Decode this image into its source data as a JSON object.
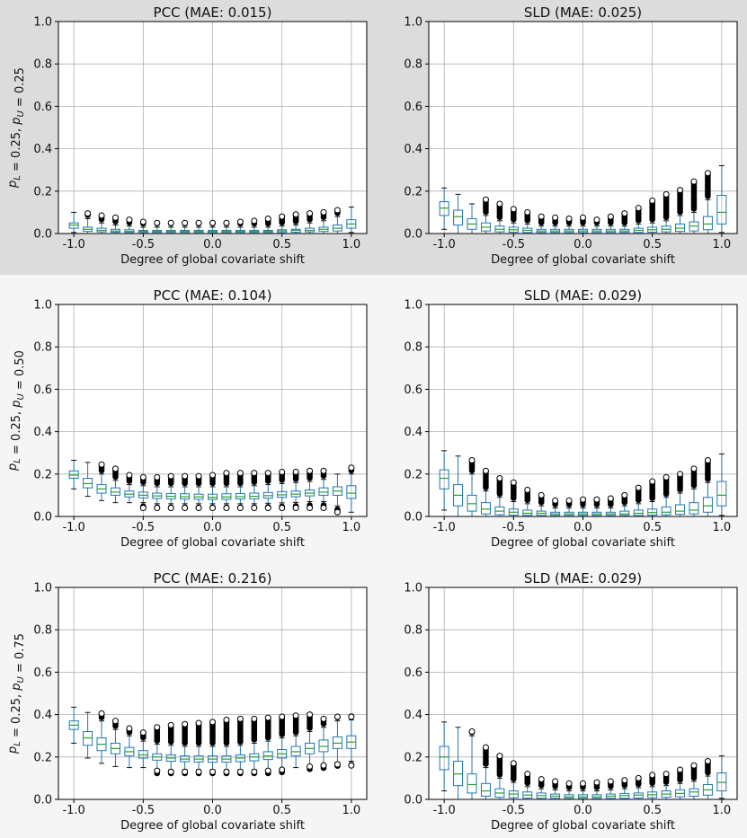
{
  "figure": {
    "xlabel": "Degree of global covariate shift",
    "x_tick_labels": [
      "-1.0",
      "-0.5",
      "0.0",
      "0.5",
      "1.0"
    ],
    "y_tick_labels": [
      "0.0",
      "0.2",
      "0.4",
      "0.6",
      "0.8",
      "1.0"
    ],
    "rows": [
      {
        "row_label": "p_L = 0.25, p_U = 0.25"
      },
      {
        "row_label": "p_L = 0.25, p_U = 0.50"
      },
      {
        "row_label": "p_L = 0.25, p_U = 0.75"
      }
    ],
    "colors": {
      "box": "#1f77b4",
      "median": "#2ca02c",
      "grid": "#b0b0b0",
      "outlier": "#000000",
      "band_top": "#dcdcdc",
      "band_rest": "#f5f5f5"
    }
  },
  "chart_data": [
    {
      "type": "box",
      "title": "PCC (MAE: 0.015)",
      "xlabel": "Degree of global covariate shift",
      "ylabel": "p_L = 0.25, p_U = 0.25",
      "xlim": [
        -1.0,
        1.0
      ],
      "ylim": [
        0.0,
        1.0
      ],
      "grid": true,
      "x": [
        -1.0,
        -0.9,
        -0.8,
        -0.7,
        -0.6,
        -0.5,
        -0.4,
        -0.3,
        -0.2,
        -0.1,
        0.0,
        0.1,
        0.2,
        0.3,
        0.4,
        0.5,
        0.6,
        0.7,
        0.8,
        0.9,
        1.0
      ],
      "median": [
        0.04,
        0.02,
        0.015,
        0.012,
        0.01,
        0.01,
        0.01,
        0.01,
        0.01,
        0.01,
        0.01,
        0.01,
        0.01,
        0.01,
        0.01,
        0.012,
        0.015,
        0.015,
        0.02,
        0.025,
        0.045
      ],
      "q1": [
        0.025,
        0.01,
        0.008,
        0.006,
        0.005,
        0.005,
        0.005,
        0.005,
        0.005,
        0.005,
        0.005,
        0.005,
        0.005,
        0.005,
        0.005,
        0.005,
        0.006,
        0.008,
        0.01,
        0.012,
        0.025
      ],
      "q3": [
        0.05,
        0.03,
        0.025,
        0.02,
        0.018,
        0.015,
        0.015,
        0.015,
        0.015,
        0.015,
        0.015,
        0.015,
        0.015,
        0.015,
        0.015,
        0.018,
        0.02,
        0.025,
        0.03,
        0.04,
        0.065
      ],
      "whisker_low": [
        0.005,
        0.0,
        0.0,
        0.0,
        0.0,
        0.0,
        0.0,
        0.0,
        0.0,
        0.0,
        0.0,
        0.0,
        0.0,
        0.0,
        0.0,
        0.0,
        0.0,
        0.0,
        0.0,
        0.0,
        0.005
      ],
      "whisker_high": [
        0.1,
        0.07,
        0.05,
        0.04,
        0.035,
        0.03,
        0.03,
        0.03,
        0.03,
        0.03,
        0.03,
        0.03,
        0.03,
        0.03,
        0.03,
        0.035,
        0.04,
        0.05,
        0.06,
        0.08,
        0.125
      ],
      "outlier_max": [
        null,
        0.095,
        0.085,
        0.075,
        0.065,
        0.055,
        0.05,
        0.05,
        0.05,
        0.05,
        0.05,
        0.05,
        0.055,
        0.06,
        0.07,
        0.08,
        0.09,
        0.095,
        0.1,
        0.11,
        null
      ],
      "outlier_min": [
        null,
        null,
        null,
        null,
        null,
        null,
        null,
        null,
        null,
        null,
        null,
        null,
        null,
        null,
        null,
        null,
        null,
        null,
        null,
        null,
        null
      ]
    },
    {
      "type": "box",
      "title": "SLD (MAE: 0.025)",
      "xlabel": "Degree of global covariate shift",
      "ylabel": "",
      "xlim": [
        -1.0,
        1.0
      ],
      "ylim": [
        0.0,
        1.0
      ],
      "grid": true,
      "x": [
        -1.0,
        -0.9,
        -0.8,
        -0.7,
        -0.6,
        -0.5,
        -0.4,
        -0.3,
        -0.2,
        -0.1,
        0.0,
        0.1,
        0.2,
        0.3,
        0.4,
        0.5,
        0.6,
        0.7,
        0.8,
        0.9,
        1.0
      ],
      "median": [
        0.12,
        0.08,
        0.045,
        0.03,
        0.02,
        0.018,
        0.015,
        0.012,
        0.012,
        0.012,
        0.012,
        0.012,
        0.012,
        0.012,
        0.015,
        0.018,
        0.02,
        0.025,
        0.035,
        0.045,
        0.1
      ],
      "q1": [
        0.085,
        0.04,
        0.02,
        0.012,
        0.008,
        0.006,
        0.005,
        0.005,
        0.005,
        0.005,
        0.005,
        0.005,
        0.005,
        0.005,
        0.005,
        0.006,
        0.008,
        0.01,
        0.012,
        0.018,
        0.045
      ],
      "q3": [
        0.15,
        0.11,
        0.07,
        0.05,
        0.035,
        0.03,
        0.025,
        0.02,
        0.02,
        0.02,
        0.02,
        0.02,
        0.02,
        0.02,
        0.025,
        0.03,
        0.035,
        0.045,
        0.055,
        0.08,
        0.18
      ],
      "whisker_low": [
        0.02,
        0.0,
        0.0,
        0.0,
        0.0,
        0.0,
        0.0,
        0.0,
        0.0,
        0.0,
        0.0,
        0.0,
        0.0,
        0.0,
        0.0,
        0.0,
        0.0,
        0.0,
        0.0,
        0.0,
        0.005
      ],
      "whisker_high": [
        0.215,
        0.185,
        0.14,
        0.085,
        0.06,
        0.05,
        0.045,
        0.035,
        0.035,
        0.035,
        0.035,
        0.035,
        0.035,
        0.035,
        0.045,
        0.05,
        0.06,
        0.085,
        0.1,
        0.16,
        0.32
      ],
      "outlier_max": [
        null,
        null,
        null,
        0.16,
        0.14,
        0.115,
        0.1,
        0.08,
        0.075,
        0.07,
        0.075,
        0.065,
        0.08,
        0.095,
        0.12,
        0.155,
        0.185,
        0.205,
        0.245,
        0.285,
        null
      ],
      "outlier_min": [
        null,
        null,
        null,
        null,
        null,
        null,
        null,
        null,
        null,
        null,
        null,
        null,
        null,
        null,
        null,
        null,
        null,
        null,
        null,
        null,
        null
      ]
    },
    {
      "type": "box",
      "title": "PCC (MAE: 0.104)",
      "xlabel": "Degree of global covariate shift",
      "ylabel": "p_L = 0.25, p_U = 0.50",
      "xlim": [
        -1.0,
        1.0
      ],
      "ylim": [
        0.0,
        1.0
      ],
      "grid": true,
      "x": [
        -1.0,
        -0.9,
        -0.8,
        -0.7,
        -0.6,
        -0.5,
        -0.4,
        -0.3,
        -0.2,
        -0.1,
        0.0,
        0.1,
        0.2,
        0.3,
        0.4,
        0.5,
        0.6,
        0.7,
        0.8,
        0.9,
        1.0
      ],
      "median": [
        0.195,
        0.155,
        0.13,
        0.115,
        0.105,
        0.1,
        0.097,
        0.095,
        0.093,
        0.092,
        0.09,
        0.092,
        0.093,
        0.095,
        0.098,
        0.102,
        0.105,
        0.11,
        0.115,
        0.12,
        0.11
      ],
      "q1": [
        0.18,
        0.135,
        0.11,
        0.1,
        0.092,
        0.088,
        0.085,
        0.083,
        0.082,
        0.081,
        0.08,
        0.081,
        0.082,
        0.083,
        0.086,
        0.09,
        0.093,
        0.097,
        0.1,
        0.1,
        0.085
      ],
      "q3": [
        0.215,
        0.18,
        0.15,
        0.135,
        0.12,
        0.115,
        0.11,
        0.108,
        0.107,
        0.105,
        0.105,
        0.107,
        0.108,
        0.11,
        0.113,
        0.117,
        0.12,
        0.125,
        0.135,
        0.14,
        0.145
      ],
      "whisker_low": [
        0.13,
        0.095,
        0.075,
        0.065,
        0.065,
        0.065,
        0.06,
        0.06,
        0.06,
        0.06,
        0.06,
        0.06,
        0.06,
        0.06,
        0.062,
        0.064,
        0.066,
        0.07,
        0.07,
        0.05,
        0.02
      ],
      "whisker_high": [
        0.265,
        0.255,
        0.2,
        0.17,
        0.15,
        0.145,
        0.14,
        0.14,
        0.14,
        0.14,
        0.14,
        0.14,
        0.14,
        0.145,
        0.15,
        0.155,
        0.16,
        0.165,
        0.175,
        0.2,
        0.2
      ],
      "outlier_max": [
        null,
        null,
        0.245,
        0.225,
        0.195,
        0.185,
        0.185,
        0.19,
        0.19,
        0.19,
        0.195,
        0.205,
        0.205,
        0.205,
        0.205,
        0.21,
        0.21,
        0.215,
        0.215,
        null,
        0.23
      ],
      "outlier_min": [
        null,
        null,
        null,
        null,
        null,
        0.04,
        0.04,
        0.04,
        0.04,
        0.04,
        0.04,
        0.04,
        0.04,
        0.04,
        0.04,
        0.04,
        0.04,
        0.04,
        0.04,
        0.02,
        null
      ]
    },
    {
      "type": "box",
      "title": "SLD (MAE: 0.029)",
      "xlabel": "Degree of global covariate shift",
      "ylabel": "",
      "xlim": [
        -1.0,
        1.0
      ],
      "ylim": [
        0.0,
        1.0
      ],
      "grid": true,
      "x": [
        -1.0,
        -0.9,
        -0.8,
        -0.7,
        -0.6,
        -0.5,
        -0.4,
        -0.3,
        -0.2,
        -0.1,
        0.0,
        0.1,
        0.2,
        0.3,
        0.4,
        0.5,
        0.6,
        0.7,
        0.8,
        0.9,
        1.0
      ],
      "median": [
        0.18,
        0.1,
        0.06,
        0.035,
        0.025,
        0.02,
        0.015,
        0.015,
        0.012,
        0.012,
        0.012,
        0.012,
        0.012,
        0.012,
        0.015,
        0.018,
        0.02,
        0.025,
        0.03,
        0.05,
        0.1
      ],
      "q1": [
        0.13,
        0.05,
        0.025,
        0.012,
        0.008,
        0.006,
        0.005,
        0.005,
        0.005,
        0.005,
        0.005,
        0.005,
        0.005,
        0.005,
        0.005,
        0.006,
        0.008,
        0.01,
        0.012,
        0.02,
        0.05
      ],
      "q3": [
        0.22,
        0.15,
        0.1,
        0.065,
        0.045,
        0.035,
        0.03,
        0.025,
        0.02,
        0.02,
        0.02,
        0.02,
        0.02,
        0.025,
        0.03,
        0.035,
        0.045,
        0.055,
        0.065,
        0.09,
        0.165
      ],
      "whisker_low": [
        0.03,
        0.0,
        0.0,
        0.0,
        0.0,
        0.0,
        0.0,
        0.0,
        0.0,
        0.0,
        0.0,
        0.0,
        0.0,
        0.0,
        0.0,
        0.0,
        0.0,
        0.0,
        0.0,
        0.0,
        0.005
      ],
      "whisker_high": [
        0.31,
        0.285,
        0.2,
        0.12,
        0.09,
        0.07,
        0.06,
        0.05,
        0.04,
        0.04,
        0.04,
        0.04,
        0.04,
        0.05,
        0.06,
        0.07,
        0.09,
        0.11,
        0.13,
        0.16,
        0.295
      ],
      "outlier_max": [
        null,
        null,
        0.265,
        0.215,
        0.18,
        0.16,
        0.125,
        0.1,
        0.075,
        0.075,
        0.08,
        0.08,
        0.085,
        0.1,
        0.135,
        0.165,
        0.185,
        0.2,
        0.225,
        0.265,
        null
      ],
      "outlier_min": [
        null,
        null,
        null,
        null,
        null,
        null,
        null,
        null,
        null,
        null,
        null,
        null,
        null,
        null,
        null,
        null,
        null,
        null,
        null,
        null,
        null
      ]
    },
    {
      "type": "box",
      "title": "PCC (MAE: 0.216)",
      "xlabel": "Degree of global covariate shift",
      "ylabel": "p_L = 0.25, p_U = 0.75",
      "xlim": [
        -1.0,
        1.0
      ],
      "ylim": [
        0.0,
        1.0
      ],
      "grid": true,
      "x": [
        -1.0,
        -0.9,
        -0.8,
        -0.7,
        -0.6,
        -0.5,
        -0.4,
        -0.3,
        -0.2,
        -0.1,
        0.0,
        0.1,
        0.2,
        0.3,
        0.4,
        0.5,
        0.6,
        0.7,
        0.8,
        0.9,
        1.0
      ],
      "median": [
        0.35,
        0.29,
        0.26,
        0.24,
        0.225,
        0.21,
        0.2,
        0.195,
        0.19,
        0.19,
        0.19,
        0.19,
        0.195,
        0.2,
        0.205,
        0.215,
        0.225,
        0.24,
        0.25,
        0.265,
        0.27
      ],
      "q1": [
        0.33,
        0.255,
        0.23,
        0.215,
        0.205,
        0.195,
        0.185,
        0.18,
        0.178,
        0.176,
        0.175,
        0.176,
        0.178,
        0.182,
        0.188,
        0.195,
        0.205,
        0.215,
        0.225,
        0.24,
        0.24
      ],
      "q3": [
        0.37,
        0.32,
        0.29,
        0.265,
        0.245,
        0.23,
        0.215,
        0.21,
        0.205,
        0.205,
        0.205,
        0.205,
        0.21,
        0.215,
        0.225,
        0.235,
        0.25,
        0.265,
        0.28,
        0.295,
        0.3
      ],
      "whisker_low": [
        0.265,
        0.195,
        0.17,
        0.155,
        0.15,
        0.15,
        0.14,
        0.14,
        0.14,
        0.14,
        0.14,
        0.14,
        0.14,
        0.14,
        0.14,
        0.145,
        0.15,
        0.16,
        0.165,
        0.175,
        0.18
      ],
      "whisker_high": [
        0.435,
        0.41,
        0.37,
        0.33,
        0.3,
        0.275,
        0.26,
        0.255,
        0.25,
        0.25,
        0.25,
        0.25,
        0.255,
        0.265,
        0.275,
        0.29,
        0.3,
        0.32,
        0.34,
        0.37,
        0.375
      ],
      "outlier_max": [
        null,
        null,
        0.405,
        0.37,
        0.335,
        0.315,
        0.34,
        0.35,
        0.355,
        0.36,
        0.365,
        0.375,
        0.38,
        0.38,
        0.385,
        0.39,
        0.395,
        0.4,
        0.38,
        0.39,
        0.39
      ],
      "outlier_min": [
        null,
        null,
        null,
        null,
        null,
        null,
        0.135,
        0.13,
        0.13,
        0.13,
        0.13,
        0.13,
        0.13,
        0.13,
        0.135,
        0.14,
        0.15,
        0.155,
        0.16,
        0.165,
        0.16
      ]
    },
    {
      "type": "box",
      "title": "SLD (MAE: 0.029)",
      "xlabel": "Degree of global covariate shift",
      "ylabel": "",
      "xlim": [
        -1.0,
        1.0
      ],
      "ylim": [
        0.0,
        1.0
      ],
      "grid": true,
      "x": [
        -1.0,
        -0.9,
        -0.8,
        -0.7,
        -0.6,
        -0.5,
        -0.4,
        -0.3,
        -0.2,
        -0.1,
        0.0,
        0.1,
        0.2,
        0.3,
        0.4,
        0.5,
        0.6,
        0.7,
        0.8,
        0.9,
        1.0
      ],
      "median": [
        0.2,
        0.12,
        0.07,
        0.04,
        0.03,
        0.025,
        0.02,
        0.018,
        0.015,
        0.012,
        0.012,
        0.012,
        0.015,
        0.018,
        0.02,
        0.022,
        0.025,
        0.028,
        0.035,
        0.045,
        0.08
      ],
      "q1": [
        0.14,
        0.065,
        0.03,
        0.015,
        0.01,
        0.008,
        0.006,
        0.005,
        0.005,
        0.005,
        0.005,
        0.005,
        0.005,
        0.005,
        0.006,
        0.008,
        0.01,
        0.012,
        0.015,
        0.02,
        0.04
      ],
      "q3": [
        0.25,
        0.18,
        0.12,
        0.075,
        0.05,
        0.04,
        0.035,
        0.03,
        0.025,
        0.022,
        0.022,
        0.022,
        0.025,
        0.028,
        0.03,
        0.035,
        0.04,
        0.045,
        0.05,
        0.07,
        0.125
      ],
      "whisker_low": [
        0.04,
        0.0,
        0.0,
        0.0,
        0.0,
        0.0,
        0.0,
        0.0,
        0.0,
        0.0,
        0.0,
        0.0,
        0.0,
        0.0,
        0.0,
        0.0,
        0.0,
        0.0,
        0.0,
        0.0,
        0.005
      ],
      "whisker_high": [
        0.365,
        0.34,
        0.3,
        0.15,
        0.1,
        0.08,
        0.06,
        0.05,
        0.045,
        0.04,
        0.04,
        0.04,
        0.045,
        0.05,
        0.055,
        0.06,
        0.065,
        0.075,
        0.085,
        0.11,
        0.205
      ],
      "outlier_max": [
        null,
        null,
        0.32,
        0.245,
        0.205,
        0.17,
        0.12,
        0.095,
        0.085,
        0.075,
        0.075,
        0.08,
        0.085,
        0.09,
        0.1,
        0.115,
        0.12,
        0.14,
        0.16,
        0.18,
        null
      ],
      "outlier_min": [
        null,
        null,
        null,
        null,
        null,
        null,
        null,
        null,
        null,
        null,
        null,
        null,
        null,
        null,
        null,
        null,
        null,
        null,
        null,
        null,
        null
      ]
    }
  ]
}
